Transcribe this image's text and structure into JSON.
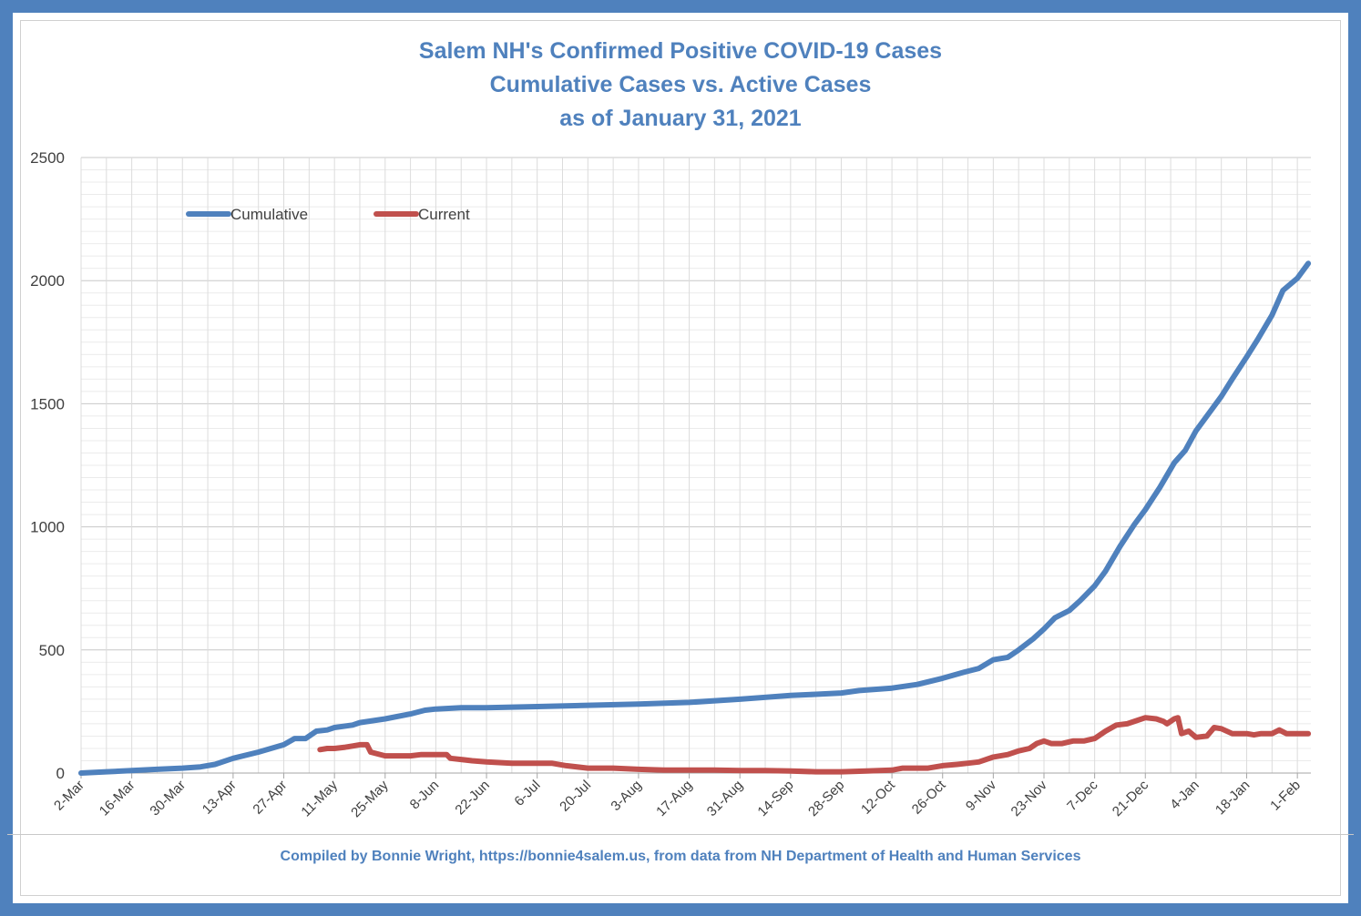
{
  "chart_data": {
    "type": "line",
    "title_lines": [
      "Salem NH's Confirmed Positive COVID-19 Cases",
      "Cumulative Cases vs. Active Cases",
      "as of January 31, 2021"
    ],
    "xlabel": "",
    "ylabel": "",
    "ylim": [
      0,
      2500
    ],
    "yticks": [
      0,
      500,
      1000,
      1500,
      2000,
      2500
    ],
    "x_tick_labels": [
      "2-Mar",
      "16-Mar",
      "30-Mar",
      "13-Apr",
      "27-Apr",
      "11-May",
      "25-May",
      "8-Jun",
      "22-Jun",
      "6-Jul",
      "20-Jul",
      "3-Aug",
      "17-Aug",
      "31-Aug",
      "14-Sep",
      "28-Sep",
      "12-Oct",
      "26-Oct",
      "9-Nov",
      "23-Nov",
      "7-Dec",
      "21-Dec",
      "4-Jan",
      "18-Jan",
      "1-Feb"
    ],
    "x_tick_interval_days": 14,
    "grid": true,
    "legend_position": "top-left",
    "colors": {
      "cumulative": "#4f81bd",
      "current": "#c0504d",
      "title": "#4f81bd",
      "frame": "#4f81bd"
    },
    "series": [
      {
        "name": "Cumulative",
        "points": [
          [
            "2-Mar",
            0
          ],
          [
            "9-Mar",
            5
          ],
          [
            "16-Mar",
            10
          ],
          [
            "23-Mar",
            15
          ],
          [
            "30-Mar",
            20
          ],
          [
            "4-Apr",
            25
          ],
          [
            "8-Apr",
            35
          ],
          [
            "13-Apr",
            60
          ],
          [
            "20-Apr",
            85
          ],
          [
            "27-Apr",
            115
          ],
          [
            "30-Apr",
            140
          ],
          [
            "3-May",
            140
          ],
          [
            "6-May",
            170
          ],
          [
            "9-May",
            175
          ],
          [
            "11-May",
            185
          ],
          [
            "16-May",
            195
          ],
          [
            "18-May",
            205
          ],
          [
            "25-May",
            220
          ],
          [
            "1-Jun",
            240
          ],
          [
            "5-Jun",
            255
          ],
          [
            "8-Jun",
            260
          ],
          [
            "15-Jun",
            265
          ],
          [
            "22-Jun",
            265
          ],
          [
            "6-Jul",
            270
          ],
          [
            "20-Jul",
            275
          ],
          [
            "3-Aug",
            280
          ],
          [
            "17-Aug",
            287
          ],
          [
            "31-Aug",
            300
          ],
          [
            "14-Sep",
            315
          ],
          [
            "21-Sep",
            320
          ],
          [
            "28-Sep",
            325
          ],
          [
            "3-Oct",
            335
          ],
          [
            "12-Oct",
            345
          ],
          [
            "19-Oct",
            360
          ],
          [
            "26-Oct",
            385
          ],
          [
            "1-Nov",
            410
          ],
          [
            "5-Nov",
            425
          ],
          [
            "9-Nov",
            460
          ],
          [
            "13-Nov",
            470
          ],
          [
            "16-Nov",
            500
          ],
          [
            "20-Nov",
            545
          ],
          [
            "23-Nov",
            585
          ],
          [
            "26-Nov",
            630
          ],
          [
            "30-Nov",
            660
          ],
          [
            "3-Dec",
            700
          ],
          [
            "7-Dec",
            760
          ],
          [
            "10-Dec",
            820
          ],
          [
            "14-Dec",
            920
          ],
          [
            "18-Dec",
            1010
          ],
          [
            "21-Dec",
            1070
          ],
          [
            "25-Dec",
            1160
          ],
          [
            "29-Dec",
            1260
          ],
          [
            "1-Jan",
            1310
          ],
          [
            "4-Jan",
            1390
          ],
          [
            "8-Jan",
            1470
          ],
          [
            "11-Jan",
            1530
          ],
          [
            "14-Jan",
            1600
          ],
          [
            "18-Jan",
            1690
          ],
          [
            "21-Jan",
            1760
          ],
          [
            "25-Jan",
            1860
          ],
          [
            "28-Jan",
            1960
          ],
          [
            "1-Feb",
            2010
          ],
          [
            "4-Feb",
            2070
          ]
        ]
      },
      {
        "name": "Current",
        "points": [
          [
            "7-May",
            95
          ],
          [
            "9-May",
            100
          ],
          [
            "11-May",
            100
          ],
          [
            "14-May",
            105
          ],
          [
            "16-May",
            110
          ],
          [
            "18-May",
            115
          ],
          [
            "20-May",
            115
          ],
          [
            "21-May",
            85
          ],
          [
            "25-May",
            70
          ],
          [
            "29-May",
            70
          ],
          [
            "1-Jun",
            70
          ],
          [
            "4-Jun",
            75
          ],
          [
            "8-Jun",
            75
          ],
          [
            "11-Jun",
            75
          ],
          [
            "12-Jun",
            60
          ],
          [
            "15-Jun",
            55
          ],
          [
            "18-Jun",
            50
          ],
          [
            "22-Jun",
            45
          ],
          [
            "29-Jun",
            40
          ],
          [
            "6-Jul",
            40
          ],
          [
            "10-Jul",
            40
          ],
          [
            "14-Jul",
            30
          ],
          [
            "20-Jul",
            20
          ],
          [
            "27-Jul",
            20
          ],
          [
            "3-Aug",
            15
          ],
          [
            "10-Aug",
            12
          ],
          [
            "17-Aug",
            12
          ],
          [
            "24-Aug",
            12
          ],
          [
            "31-Aug",
            10
          ],
          [
            "7-Sep",
            10
          ],
          [
            "14-Sep",
            8
          ],
          [
            "21-Sep",
            5
          ],
          [
            "28-Sep",
            5
          ],
          [
            "5-Oct",
            8
          ],
          [
            "12-Oct",
            12
          ],
          [
            "15-Oct",
            20
          ],
          [
            "19-Oct",
            20
          ],
          [
            "22-Oct",
            20
          ],
          [
            "26-Oct",
            30
          ],
          [
            "30-Oct",
            35
          ],
          [
            "2-Nov",
            40
          ],
          [
            "5-Nov",
            45
          ],
          [
            "9-Nov",
            65
          ],
          [
            "13-Nov",
            75
          ],
          [
            "16-Nov",
            90
          ],
          [
            "19-Nov",
            100
          ],
          [
            "21-Nov",
            120
          ],
          [
            "23-Nov",
            130
          ],
          [
            "25-Nov",
            120
          ],
          [
            "28-Nov",
            120
          ],
          [
            "1-Dec",
            130
          ],
          [
            "4-Dec",
            130
          ],
          [
            "7-Dec",
            140
          ],
          [
            "10-Dec",
            170
          ],
          [
            "13-Dec",
            195
          ],
          [
            "16-Dec",
            200
          ],
          [
            "19-Dec",
            215
          ],
          [
            "21-Dec",
            225
          ],
          [
            "24-Dec",
            220
          ],
          [
            "26-Dec",
            210
          ],
          [
            "27-Dec",
            200
          ],
          [
            "29-Dec",
            220
          ],
          [
            "30-Dec",
            225
          ],
          [
            "31-Dec",
            160
          ],
          [
            "2-Jan",
            170
          ],
          [
            "4-Jan",
            145
          ],
          [
            "7-Jan",
            150
          ],
          [
            "9-Jan",
            185
          ],
          [
            "11-Jan",
            180
          ],
          [
            "14-Jan",
            160
          ],
          [
            "16-Jan",
            160
          ],
          [
            "18-Jan",
            160
          ],
          [
            "20-Jan",
            155
          ],
          [
            "22-Jan",
            160
          ],
          [
            "25-Jan",
            160
          ],
          [
            "27-Jan",
            175
          ],
          [
            "29-Jan",
            160
          ],
          [
            "1-Feb",
            160
          ],
          [
            "4-Feb",
            160
          ]
        ]
      }
    ],
    "footer": "Compiled by Bonnie Wright, https://bonnie4salem.us, from data from NH Department of Health and Human Services"
  }
}
